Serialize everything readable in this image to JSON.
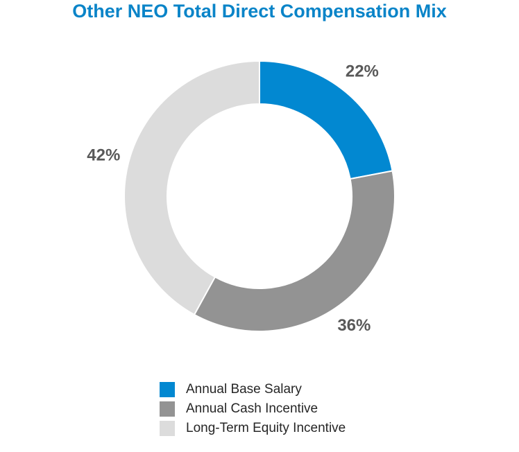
{
  "chart_data": {
    "type": "pie",
    "variant": "donut",
    "title": "Other NEO Total Direct Compensation Mix",
    "title_color": "#0a84c8",
    "slices": [
      {
        "label": "Annual Base Salary",
        "value": 22,
        "display": "22%",
        "color": "#0288d1"
      },
      {
        "label": "Annual Cash Incentive",
        "value": 36,
        "display": "36%",
        "color": "#939393"
      },
      {
        "label": "Long-Term Equity Incentive",
        "value": 42,
        "display": "42%",
        "color": "#dcdcdc"
      }
    ],
    "legend_position": "bottom"
  }
}
